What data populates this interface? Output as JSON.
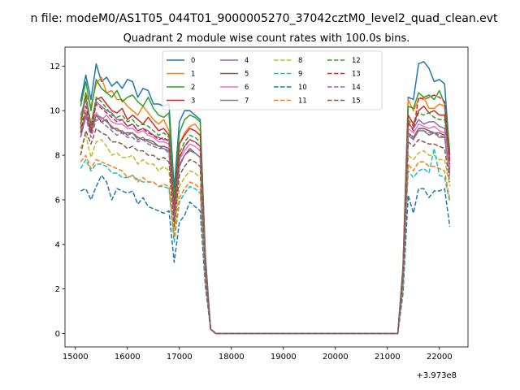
{
  "chart_data": {
    "type": "line",
    "suptitle": "n file: modeM0/AS1T05_044T01_9000005270_37042cztM0_level2_quad_clean.evt",
    "title": "Quadrant 2 module wise count rates with 100.0s bins.",
    "xlabel": "",
    "ylabel": "",
    "x_offset_label": "+3.973e8",
    "xlim": [
      14800,
      22550
    ],
    "ylim": [
      -0.6,
      12.85
    ],
    "xticks": [
      15000,
      16000,
      17000,
      18000,
      19000,
      20000,
      21000,
      22000
    ],
    "yticks": [
      0,
      2,
      4,
      6,
      8,
      10,
      12
    ],
    "grid": false,
    "legend": {
      "placement": "top-center",
      "columns": 4
    },
    "anchors": {
      "x": [
        15100,
        15200,
        15300,
        15400,
        15500,
        15600,
        15700,
        15800,
        15900,
        16000,
        16100,
        16200,
        16300,
        16400,
        16500,
        16600,
        16700,
        16800,
        16900,
        17000,
        17100,
        17200,
        17300,
        17400,
        17500,
        17600,
        17700,
        21200,
        21300,
        21400,
        21500,
        21600,
        21700,
        21800,
        21900,
        22000,
        22100,
        22200
      ],
      "note": "x values are in data units relative to offset"
    },
    "series": [
      {
        "name": "0",
        "color": "#1f77b4",
        "dash": "solid",
        "values": [
          10.4,
          11.6,
          10.5,
          12.1,
          11.3,
          11.5,
          11.1,
          11.3,
          11.0,
          11.4,
          11.3,
          10.6,
          11.0,
          10.9,
          10.3,
          10.3,
          10.2,
          10.3,
          6.5,
          9.5,
          10.0,
          10.0,
          9.8,
          9.6,
          3.5,
          0.2,
          0.0,
          0.0,
          3.0,
          10.6,
          10.5,
          12.1,
          12.2,
          11.9,
          11.3,
          11.4,
          11.2,
          8.0
        ]
      },
      {
        "name": "1",
        "color": "#ff7f0e",
        "dash": "solid",
        "values": [
          9.6,
          10.8,
          10.2,
          11.2,
          11.5,
          10.8,
          10.9,
          10.5,
          10.5,
          10.2,
          10.0,
          9.8,
          10.2,
          9.9,
          9.6,
          9.4,
          9.6,
          9.1,
          5.5,
          8.5,
          9.0,
          9.3,
          9.4,
          9.1,
          3.3,
          0.2,
          0.0,
          0.0,
          2.9,
          10.5,
          10.0,
          10.5,
          10.6,
          10.1,
          10.1,
          10.3,
          10.2,
          7.4
        ]
      },
      {
        "name": "2",
        "color": "#2ca02c",
        "dash": "solid",
        "values": [
          10.2,
          11.3,
          10.0,
          11.4,
          11.0,
          10.8,
          10.6,
          10.9,
          10.4,
          10.6,
          10.7,
          10.4,
          10.2,
          10.6,
          10.1,
          9.8,
          9.7,
          9.9,
          6.0,
          9.0,
          9.6,
          9.8,
          9.7,
          9.5,
          3.4,
          0.2,
          0.0,
          0.0,
          3.0,
          10.2,
          10.1,
          10.8,
          10.6,
          10.7,
          10.5,
          10.9,
          10.3,
          8.2
        ]
      },
      {
        "name": "3",
        "color": "#d62728",
        "dash": "solid",
        "values": [
          9.4,
          10.6,
          9.4,
          10.5,
          10.6,
          10.3,
          10.0,
          9.9,
          10.1,
          9.6,
          9.8,
          9.6,
          9.4,
          9.7,
          9.4,
          9.1,
          9.2,
          8.9,
          5.6,
          8.5,
          8.9,
          9.2,
          9.1,
          8.9,
          3.2,
          0.2,
          0.0,
          0.0,
          2.8,
          9.8,
          9.4,
          10.0,
          10.2,
          9.9,
          10.0,
          9.8,
          9.8,
          7.8
        ]
      },
      {
        "name": "4",
        "color": "#9467bd",
        "dash": "solid",
        "values": [
          9.8,
          10.5,
          9.2,
          10.4,
          10.2,
          10.0,
          9.9,
          9.6,
          9.6,
          9.3,
          9.4,
          9.1,
          9.2,
          9.1,
          8.9,
          8.8,
          8.7,
          8.7,
          5.4,
          7.9,
          8.4,
          8.7,
          8.6,
          8.4,
          3.1,
          0.2,
          0.0,
          0.0,
          2.7,
          9.4,
          9.2,
          9.6,
          9.4,
          9.5,
          9.5,
          9.3,
          9.2,
          7.5
        ]
      },
      {
        "name": "5",
        "color": "#8c564b",
        "dash": "solid",
        "values": [
          8.8,
          9.8,
          9.0,
          9.8,
          9.5,
          9.6,
          9.2,
          9.2,
          9.0,
          9.0,
          9.0,
          8.8,
          8.7,
          8.7,
          8.6,
          8.4,
          8.4,
          8.3,
          5.1,
          7.5,
          8.0,
          8.3,
          8.1,
          7.9,
          3.0,
          0.2,
          0.0,
          0.0,
          2.6,
          9.0,
          8.8,
          9.2,
          9.2,
          9.1,
          9.0,
          9.0,
          8.9,
          7.3
        ]
      },
      {
        "name": "6",
        "color": "#e377c2",
        "dash": "solid",
        "values": [
          9.5,
          9.8,
          9.5,
          9.9,
          9.6,
          9.8,
          9.5,
          9.4,
          9.4,
          9.2,
          9.2,
          9.0,
          9.1,
          8.9,
          8.8,
          8.6,
          8.6,
          8.5,
          5.3,
          7.8,
          8.2,
          8.5,
          8.4,
          8.2,
          3.1,
          0.2,
          0.0,
          0.0,
          2.6,
          9.2,
          9.0,
          9.4,
          9.3,
          9.2,
          9.3,
          9.1,
          9.0,
          7.5
        ]
      },
      {
        "name": "7",
        "color": "#7f7f7f",
        "dash": "solid",
        "values": [
          9.0,
          9.9,
          9.3,
          9.8,
          9.7,
          9.5,
          9.3,
          9.1,
          9.1,
          8.9,
          9.0,
          8.7,
          8.8,
          8.6,
          8.5,
          8.4,
          8.3,
          8.2,
          5.2,
          7.6,
          8.0,
          8.2,
          8.1,
          7.9,
          3.0,
          0.2,
          0.0,
          0.0,
          2.6,
          8.9,
          8.7,
          9.1,
          9.1,
          8.9,
          9.0,
          8.8,
          8.8,
          7.2
        ]
      },
      {
        "name": "8",
        "color": "#bcbd22",
        "dash": "dashed",
        "values": [
          8.3,
          8.9,
          7.9,
          8.6,
          8.7,
          8.4,
          8.0,
          8.1,
          7.9,
          7.9,
          8.0,
          7.6,
          7.8,
          7.6,
          7.6,
          7.3,
          7.5,
          7.3,
          4.6,
          6.6,
          7.0,
          7.3,
          7.2,
          7.0,
          2.7,
          0.2,
          0.0,
          0.0,
          2.3,
          8.0,
          7.8,
          8.1,
          8.2,
          8.0,
          8.0,
          7.8,
          7.8,
          6.6
        ]
      },
      {
        "name": "9",
        "color": "#17becf",
        "dash": "dashed",
        "values": [
          7.4,
          7.8,
          7.3,
          7.6,
          7.6,
          7.5,
          7.2,
          7.2,
          7.0,
          7.0,
          7.1,
          6.9,
          6.8,
          6.8,
          6.8,
          6.6,
          6.6,
          6.5,
          4.1,
          5.9,
          6.3,
          6.6,
          6.5,
          6.3,
          2.4,
          0.2,
          0.0,
          0.0,
          2.1,
          7.3,
          7.0,
          7.3,
          7.4,
          7.2,
          8.3,
          7.1,
          7.0,
          5.9
        ]
      },
      {
        "name": "10",
        "color": "#1f77b4",
        "dash": "dashed",
        "values": [
          6.4,
          6.5,
          6.0,
          6.6,
          7.1,
          6.8,
          6.0,
          6.5,
          6.4,
          6.3,
          6.4,
          5.8,
          6.1,
          5.7,
          5.6,
          5.5,
          5.4,
          5.5,
          3.2,
          5.0,
          5.3,
          5.9,
          5.7,
          5.5,
          2.1,
          0.2,
          0.0,
          0.0,
          1.8,
          6.2,
          5.4,
          6.5,
          6.5,
          6.1,
          6.4,
          6.4,
          6.5,
          4.8
        ]
      },
      {
        "name": "11",
        "color": "#ff7f0e",
        "dash": "dashed",
        "values": [
          7.7,
          8.0,
          7.4,
          7.8,
          7.7,
          7.6,
          7.5,
          7.4,
          7.3,
          7.0,
          7.1,
          6.8,
          7.0,
          6.8,
          6.8,
          6.6,
          6.7,
          6.6,
          4.3,
          6.1,
          6.5,
          6.8,
          6.7,
          6.5,
          2.5,
          0.2,
          0.0,
          0.0,
          2.2,
          7.6,
          7.3,
          7.7,
          7.7,
          7.5,
          7.5,
          7.4,
          7.3,
          6.0
        ]
      },
      {
        "name": "12",
        "color": "#2ca02c",
        "dash": "dashed",
        "values": [
          9.2,
          10.8,
          9.3,
          10.6,
          10.4,
          10.1,
          9.8,
          9.7,
          9.8,
          9.5,
          9.6,
          9.3,
          9.4,
          9.3,
          9.1,
          8.9,
          9.0,
          8.8,
          5.5,
          8.1,
          8.6,
          8.9,
          8.8,
          8.6,
          3.2,
          0.2,
          0.0,
          0.0,
          2.8,
          9.6,
          9.3,
          9.9,
          9.8,
          9.9,
          9.7,
          9.6,
          9.6,
          7.7
        ]
      },
      {
        "name": "13",
        "color": "#d62728",
        "dash": "dashed",
        "values": [
          9.0,
          10.2,
          9.1,
          10.3,
          10.1,
          9.9,
          9.7,
          9.5,
          9.6,
          9.3,
          9.4,
          9.1,
          9.2,
          9.0,
          8.9,
          8.7,
          8.8,
          8.6,
          5.4,
          7.9,
          8.4,
          8.7,
          8.6,
          8.4,
          3.1,
          0.2,
          0.0,
          0.0,
          2.7,
          9.5,
          9.1,
          10.6,
          10.5,
          10.6,
          10.7,
          10.6,
          10.4,
          7.6
        ]
      },
      {
        "name": "14",
        "color": "#9467bd",
        "dash": "dashed",
        "values": [
          8.8,
          9.7,
          8.8,
          9.6,
          9.5,
          9.3,
          9.1,
          8.9,
          9.0,
          8.8,
          8.8,
          8.6,
          8.7,
          8.5,
          8.4,
          8.3,
          8.3,
          8.1,
          5.1,
          7.5,
          8.0,
          8.2,
          8.1,
          7.9,
          3.0,
          0.2,
          0.0,
          0.0,
          2.6,
          9.0,
          8.7,
          9.2,
          9.1,
          9.0,
          9.0,
          8.9,
          8.8,
          7.1
        ]
      },
      {
        "name": "15",
        "color": "#8c564b",
        "dash": "dashed",
        "values": [
          8.0,
          9.1,
          8.5,
          9.2,
          9.0,
          8.9,
          8.6,
          8.6,
          8.5,
          8.3,
          8.4,
          8.2,
          8.2,
          8.0,
          8.0,
          7.8,
          7.9,
          7.7,
          4.8,
          7.1,
          7.5,
          7.8,
          7.7,
          7.5,
          2.8,
          0.2,
          0.0,
          0.0,
          2.5,
          8.6,
          8.4,
          8.7,
          8.6,
          8.5,
          8.5,
          8.4,
          8.3,
          6.8
        ]
      }
    ]
  }
}
